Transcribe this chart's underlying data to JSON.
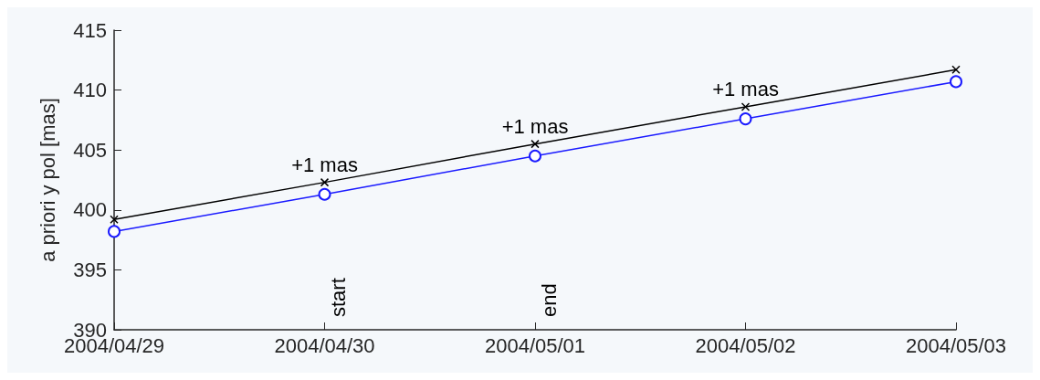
{
  "chart_data": {
    "type": "line",
    "ylabel": "a priori y pol [mas]",
    "x": [
      "2004-04-29",
      "2004-04-30",
      "2004-05-01",
      "2004-05-02",
      "2004-05-03"
    ],
    "series": [
      {
        "color": "#000000",
        "marker": "cross",
        "values": [
          399.2,
          402.3,
          405.5,
          408.6,
          411.7
        ]
      },
      {
        "color": "#1a1aff",
        "marker": "circle",
        "values": [
          398.2,
          401.3,
          404.5,
          407.6,
          410.7
        ]
      }
    ],
    "xlim": [
      "2004-04-29",
      "2004-05-03"
    ],
    "xticks": [
      {
        "value": "2004-04-29",
        "label": "2004/04/29"
      },
      {
        "value": "2004-04-30",
        "label": "2004/04/30"
      },
      {
        "value": "2004-05-01",
        "label": "2004/05/01"
      },
      {
        "value": "2004-05-02",
        "label": "2004/05/02"
      },
      {
        "value": "2004-05-03",
        "label": "2004/05/03"
      }
    ],
    "ylim": [
      390,
      415
    ],
    "yticks": [
      390,
      395,
      400,
      405,
      410,
      415
    ],
    "annotations": [
      {
        "text": "+1 mas",
        "x": "2004-04-30",
        "y": 402.3
      },
      {
        "text": "+1 mas",
        "x": "2004-05-01",
        "y": 405.5
      },
      {
        "text": "+1 mas",
        "x": "2004-05-02",
        "y": 408.6
      },
      "start",
      "end"
    ],
    "grid": false,
    "line_style": "solid"
  }
}
